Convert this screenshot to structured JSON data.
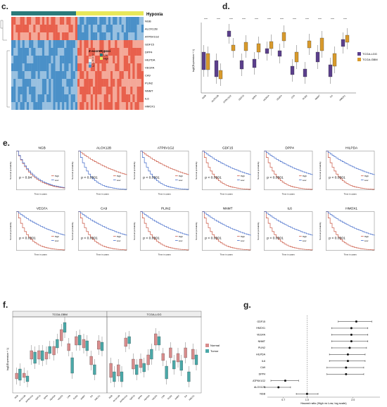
{
  "panel_labels": {
    "c": "c.",
    "d": "d.",
    "e": "e.",
    "f": "f.",
    "g": "g."
  },
  "heatmap": {
    "legend_title": "Hypoxia",
    "genes": [
      "NGB",
      "ALOX12B",
      "ATP6V1G2",
      "GDF15",
      "DPP4",
      "HILPDA",
      "VEGFA",
      "CA9",
      "PLIN2",
      "NNMT",
      "IL6",
      "HMOX1"
    ],
    "zscore_title": "Z-score",
    "zscore_ticks": [
      "2",
      "1",
      "0",
      "-1",
      "-2"
    ],
    "hypoxia_title": "Hypoxi",
    "hypoxia_levels": [
      "Low",
      "High"
    ],
    "colors": {
      "low": "#2a7a7a",
      "high": "#e8e85a",
      "hot": "#e8604c",
      "cold": "#4a90c8"
    }
  },
  "box_d": {
    "ylabel": "log2(Expression + 1)",
    "genes": [
      "NGB",
      "ALOX12B",
      "ATP6V1G2",
      "GDF15",
      "DPP4",
      "HILPDA",
      "VEGFA",
      "CA9",
      "PLIN2",
      "NNMT",
      "IL6",
      "HMOX1"
    ],
    "legend": [
      "TCGA-LGG",
      "TCGA-GBM"
    ],
    "colors": {
      "lgg": "#5b3f8c",
      "gbm": "#d89a2c"
    },
    "sig": "****"
  },
  "km": {
    "ylabel": "Survival probability",
    "xlabel": "Time in years",
    "legend": [
      "High",
      "Low"
    ],
    "colors": {
      "high": "#c8503c",
      "low": "#3c66c8"
    },
    "plots": [
      {
        "gene": "NGB",
        "p": "p = 0.94"
      },
      {
        "gene": "ALOX12B",
        "p": "p < 0.0001"
      },
      {
        "gene": "ATP6V1G2",
        "p": "p < 0.0001"
      },
      {
        "gene": "GDF15",
        "p": "p < 0.0001"
      },
      {
        "gene": "DPP4",
        "p": "p < 0.0001"
      },
      {
        "gene": "HILPDA",
        "p": "p < 0.0001"
      },
      {
        "gene": "VEGFA",
        "p": "p < 0.0001"
      },
      {
        "gene": "CA9",
        "p": "p < 0.0001"
      },
      {
        "gene": "PLIN2",
        "p": "p < 0.0001"
      },
      {
        "gene": "NNMT",
        "p": "p < 0.0001"
      },
      {
        "gene": "IL6",
        "p": "p < 0.0001"
      },
      {
        "gene": "HMOX1",
        "p": "p < 0.0001"
      }
    ]
  },
  "box_f": {
    "facets": [
      "TCGA-GBM",
      "TCGA-LGG"
    ],
    "ylabel": "log2(Expression + 1)",
    "legend": [
      "Normal",
      "Tumor"
    ],
    "colors": {
      "normal": "#d88c8c",
      "tumor": "#4aa8a8"
    },
    "genes": [
      "NGB",
      "ALOX12B",
      "ATP6V1G2",
      "GDF15",
      "DPP4",
      "HILPDA",
      "VEGFA",
      "CA9",
      "PLIN2",
      "NNMT",
      "IL6",
      "HMOX1"
    ]
  },
  "chart_data": {
    "type": "scatter",
    "xlabel": "Hazard ratio (High vs Low, log scale)",
    "xticks": [
      "0.7",
      "1.0",
      "2.0"
    ],
    "categories": [
      "GDF15",
      "HMOX1",
      "VEGFA",
      "NNMT",
      "PLIN2",
      "HILPDA",
      "IL6",
      "CA9",
      "DPP4",
      "ATP6V1G2",
      "ALOX12B",
      "NGB"
    ],
    "hr": [
      2.1,
      1.95,
      1.95,
      1.95,
      1.9,
      1.85,
      1.85,
      1.8,
      1.8,
      0.72,
      0.65,
      1.0
    ],
    "lower": [
      1.6,
      1.45,
      1.45,
      1.45,
      1.45,
      1.4,
      1.4,
      1.35,
      1.35,
      0.58,
      0.53,
      0.85
    ],
    "upper": [
      2.65,
      2.5,
      2.5,
      2.5,
      2.45,
      2.4,
      2.4,
      2.35,
      2.35,
      0.88,
      0.78,
      1.18
    ],
    "xlim": [
      0.55,
      3.0
    ],
    "reference_line": 1.0,
    "log_x": true
  }
}
